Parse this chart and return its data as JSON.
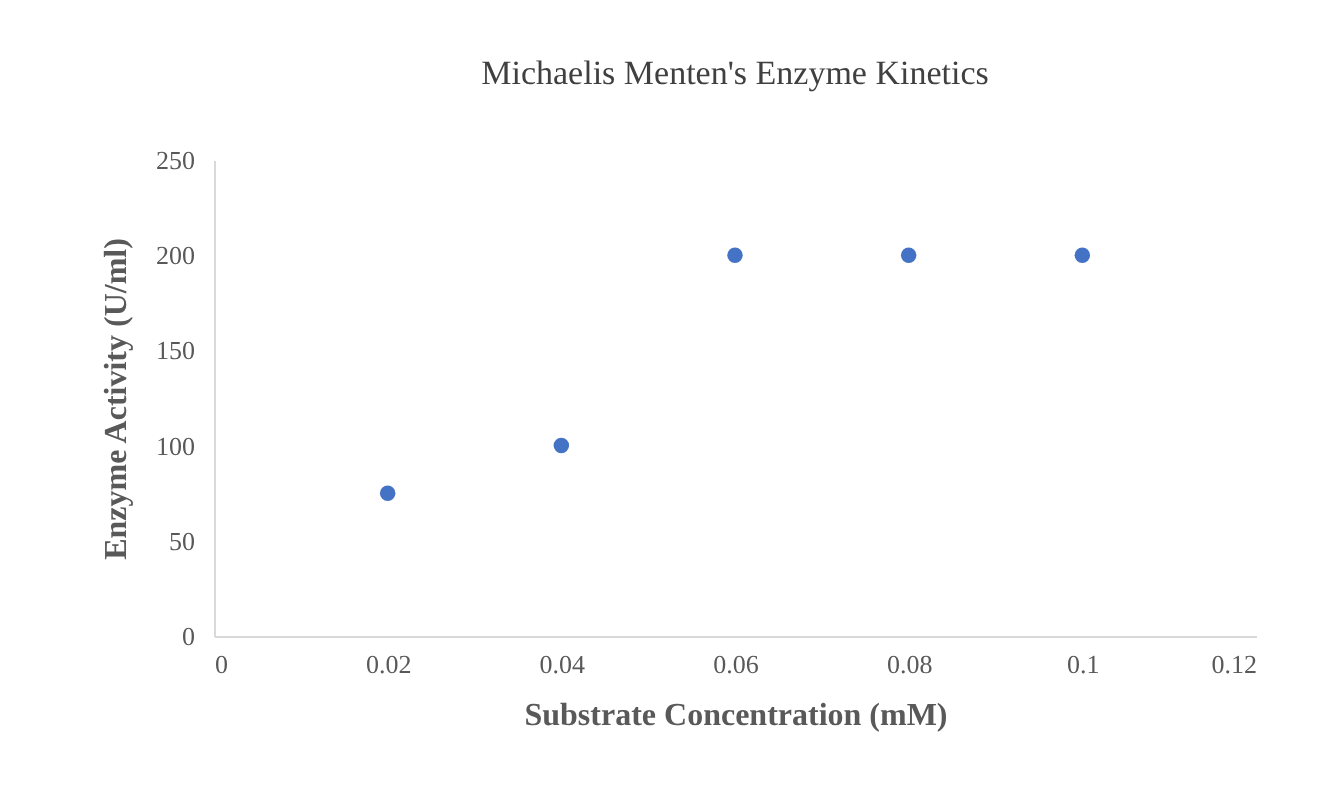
{
  "chart_data": {
    "type": "scatter",
    "title": "Michaelis  Menten's Enzyme  Kinetics",
    "xlabel": "Substrate Concentration (mM)",
    "ylabel": "Enzyme Activity (U/ml)",
    "x": [
      0.02,
      0.04,
      0.06,
      0.08,
      0.1
    ],
    "series": [
      {
        "color": "#4472c4",
        "values": [
          75,
          100,
          200,
          200,
          200
        ]
      }
    ],
    "xlim": [
      0,
      0.12
    ],
    "xticks": [
      0,
      0.02,
      0.04,
      0.06,
      0.08,
      0.1,
      0.12
    ],
    "ylim": [
      0,
      250
    ],
    "yticks": [
      0,
      50,
      100,
      150,
      200,
      250
    ],
    "grid": false,
    "legend": false,
    "marker": "circle"
  }
}
